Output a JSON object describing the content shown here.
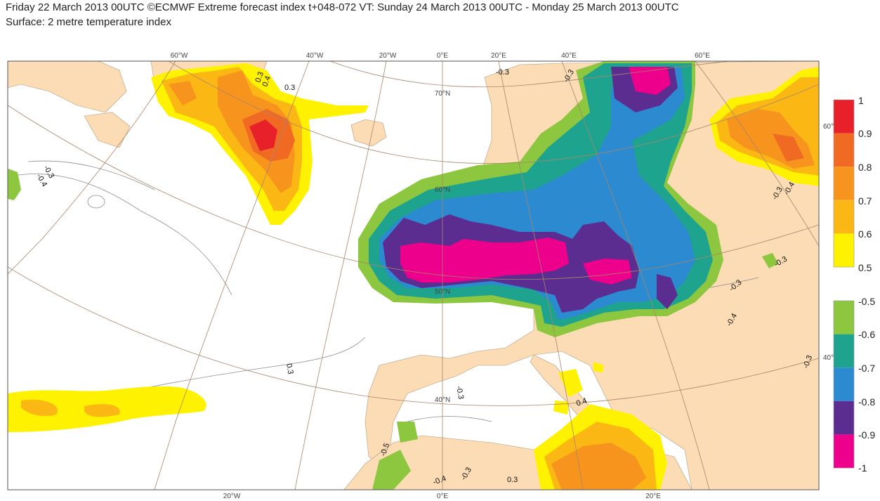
{
  "title_line1": "Friday 22 March 2013 00UTC ©ECMWF Extreme forecast index t+048-072 VT: Sunday 24 March 2013 00UTC - Monday 25 March 2013 00UTC",
  "title_line2": "Surface: 2 metre temperature index",
  "top_lon_labels": [
    "60°W",
    "40°W",
    "20°W",
    "0°E",
    "20°E",
    "40°E",
    "60°E"
  ],
  "bottom_lon_labels": [
    "20°W",
    "0°E",
    "20°E"
  ],
  "lat_labels": [
    "70°N",
    "60°N",
    "50°N",
    "40°N"
  ],
  "right_lat_labels": [
    "60°",
    "40°"
  ],
  "contour_labels": [
    "-0.3",
    "-0.4",
    "0.3",
    "0.4",
    "0.3",
    "-0.3",
    "-0.3",
    "-0.3",
    "-0.4",
    "-0.3",
    "-0.4",
    "-0.3",
    "-0.3",
    "0.3",
    "-0.3",
    "0.4",
    "-0.4",
    "-0.3",
    "0.3",
    "-0.5"
  ],
  "legend_positive": {
    "labels": [
      "1",
      "0.9",
      "0.8",
      "0.7",
      "0.6",
      "0.5"
    ],
    "colors": [
      "#e8202a",
      "#f06a24",
      "#f7941d",
      "#fbb714",
      "#fff200"
    ]
  },
  "legend_negative": {
    "labels": [
      "-0.5",
      "-0.6",
      "-0.7",
      "-0.8",
      "-0.9",
      "-1"
    ],
    "colors": [
      "#8dc63f",
      "#1ea48e",
      "#2b8ad0",
      "#5c2d91",
      "#ec008c"
    ]
  },
  "colors": {
    "land": "#fbdcb4",
    "ocean": "#ffffff",
    "graticule": "#a8856a",
    "contour_line": "#8c8c8c"
  }
}
